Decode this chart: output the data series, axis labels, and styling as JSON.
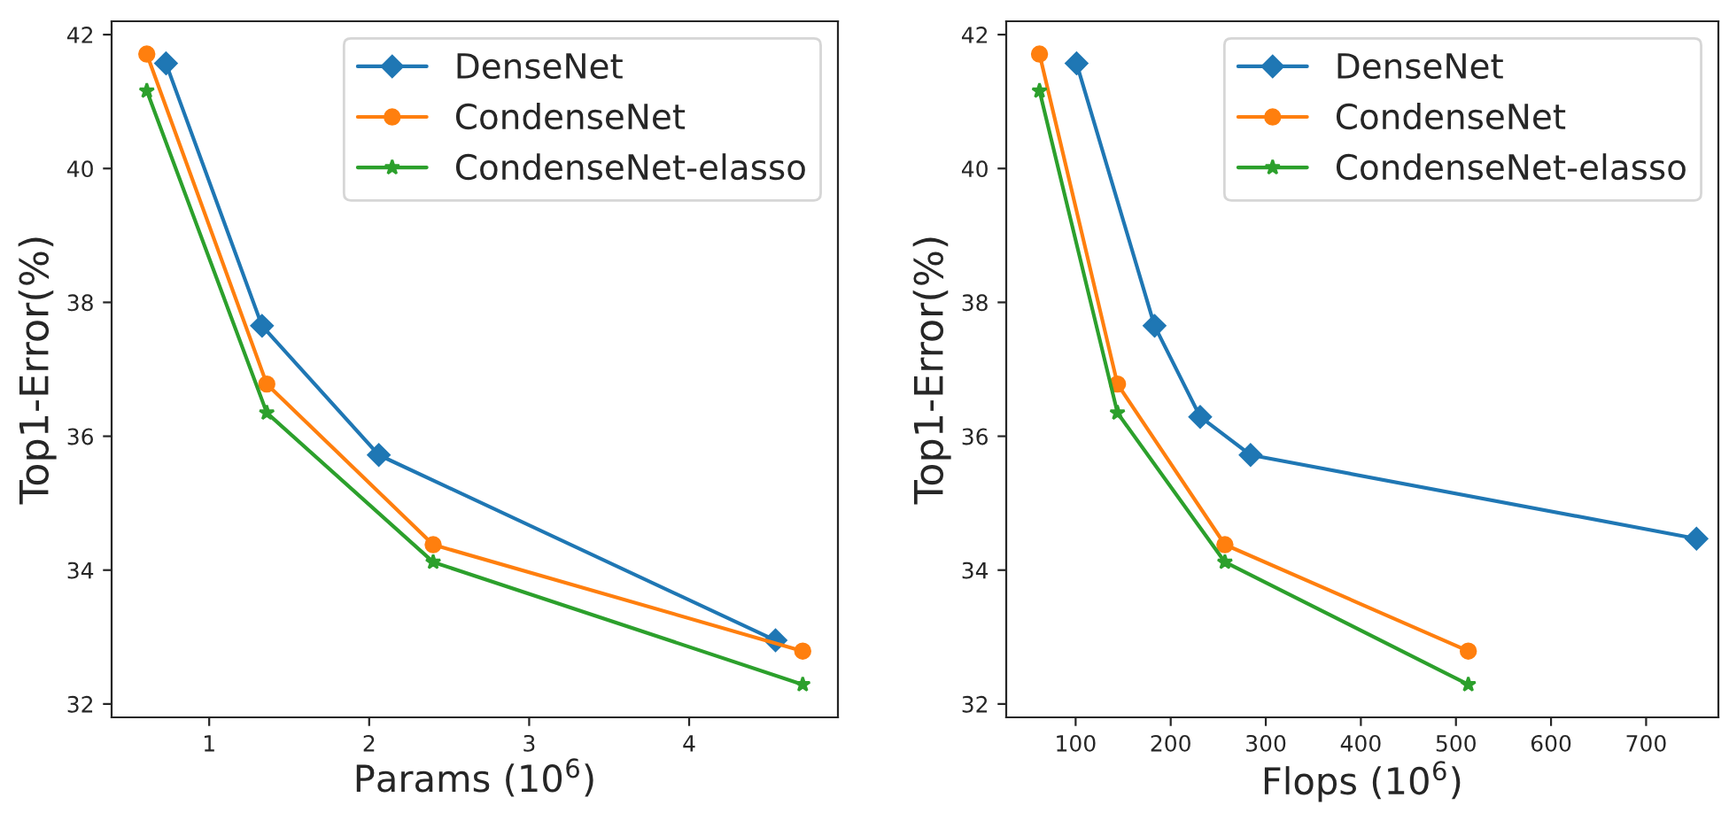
{
  "chart_data": [
    {
      "type": "line",
      "xlabel": "Params (10$^{6}$)",
      "ylabel": "Top1-Error(%)",
      "xlim": [
        0.39,
        4.93
      ],
      "xticks": [
        1,
        2,
        3,
        4
      ],
      "ylim": [
        31.8,
        42.2
      ],
      "yticks": [
        32,
        34,
        36,
        38,
        40,
        42
      ],
      "legend": "top right",
      "grid": false,
      "series": [
        {
          "name": "DenseNet",
          "color": "#1f77b4",
          "marker": "diamond",
          "x": [
            0.73,
            1.33,
            2.06,
            4.54
          ],
          "values": [
            41.57,
            37.65,
            35.72,
            32.95
          ]
        },
        {
          "name": "CondenseNet",
          "color": "#ff7f0e",
          "marker": "circle",
          "x": [
            0.61,
            1.36,
            2.4,
            4.71
          ],
          "values": [
            41.71,
            36.78,
            34.38,
            32.79
          ]
        },
        {
          "name": "CondenseNet-elasso",
          "color": "#2ca02c",
          "marker": "star",
          "x": [
            0.61,
            1.36,
            2.4,
            4.71
          ],
          "values": [
            41.16,
            36.35,
            34.12,
            32.29
          ]
        }
      ]
    },
    {
      "type": "line",
      "xlabel": "Flops (10$^{6}$)",
      "ylabel": "Top1-Error(%)",
      "xlim": [
        27,
        776
      ],
      "xticks": [
        100,
        200,
        300,
        400,
        500,
        600,
        700
      ],
      "ylim": [
        31.8,
        42.2
      ],
      "yticks": [
        32,
        34,
        36,
        38,
        40,
        42
      ],
      "legend": "top right",
      "grid": false,
      "series": [
        {
          "name": "DenseNet",
          "color": "#1f77b4",
          "marker": "diamond",
          "x": [
            101,
            183,
            231,
            284,
            753
          ],
          "values": [
            41.57,
            37.65,
            36.29,
            35.72,
            34.47
          ]
        },
        {
          "name": "CondenseNet",
          "color": "#ff7f0e",
          "marker": "circle",
          "x": [
            62,
            144,
            257,
            513
          ],
          "values": [
            41.71,
            36.78,
            34.38,
            32.79
          ]
        },
        {
          "name": "CondenseNet-elasso",
          "color": "#2ca02c",
          "marker": "star",
          "x": [
            62,
            144,
            257,
            513
          ],
          "values": [
            41.16,
            36.35,
            34.12,
            32.29
          ]
        }
      ]
    }
  ]
}
